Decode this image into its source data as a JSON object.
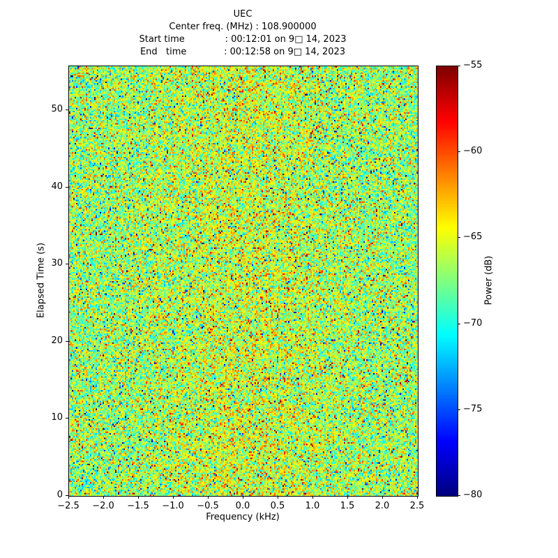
{
  "header": {
    "lines": [
      "Center freq. (MHz) : 108.900000",
      "Start time              : 00:12:01 on 9□ 14, 2023",
      "End   time             : 00:12:58 on 9□ 14, 2023"
    ]
  },
  "chart_data": {
    "type": "heatmap",
    "title": "UEC",
    "xlabel": "Frequency (kHz)",
    "ylabel": "Elapsed Time (s)",
    "colorbar_label": "Power (dB)",
    "xlim": [
      -2.5,
      2.5
    ],
    "ylim": [
      0,
      55.7
    ],
    "clim": [
      -80,
      -55
    ],
    "x_ticks": [
      -2.5,
      -2.0,
      -1.5,
      -1.0,
      -0.5,
      0.0,
      0.5,
      1.0,
      1.5,
      2.0,
      2.5
    ],
    "y_ticks": [
      0,
      10,
      20,
      30,
      40,
      50
    ],
    "colorbar_ticks": [
      -55,
      -60,
      -65,
      -70,
      -75,
      -80
    ],
    "colormap": "jet",
    "grid": false,
    "legend": "none",
    "description": "Spectrogram waterfall of wideband noise around center frequency; power mostly -72 to -62 dB with sparse hot (~-55 dB) and cold (~-80 dB) speckles and a faint warm band near 0 kHz",
    "noise_model": {
      "mean_db": -66.8,
      "std_db": 3.0,
      "center_band_boost_db": 1.2,
      "center_band_sigma_khz": 0.85,
      "outlier_fraction": 0.024,
      "seed": 42,
      "cols": 250,
      "rows": 280
    }
  }
}
